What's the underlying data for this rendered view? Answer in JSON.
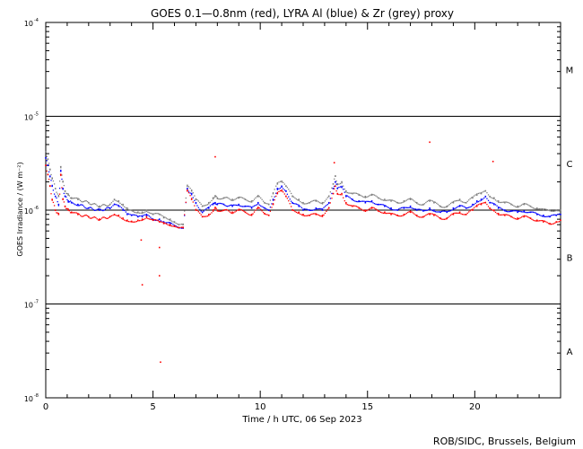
{
  "chart_data": {
    "type": "scatter",
    "title": "GOES 0.1—0.8nm (red), LYRA Al (blue) & Zr (grey) proxy",
    "xlabel": "Time / h UTC, 06 Sep 2023",
    "ylabel": "GOES Irradiance / (W m⁻²)",
    "credit": "ROB/SIDC, Brussels, Belgium",
    "xlim": [
      0,
      24
    ],
    "ylim": [
      1e-08,
      0.0001
    ],
    "yscale": "log",
    "x_ticks": [
      0,
      5,
      10,
      15,
      20
    ],
    "x_tick_labels": [
      "0",
      "5",
      "10",
      "15",
      "20"
    ],
    "y_ticks": [
      {
        "mantissa": "10",
        "exponent": "-8"
      },
      {
        "mantissa": "10",
        "exponent": "-7"
      },
      {
        "mantissa": "10",
        "exponent": "-6"
      },
      {
        "mantissa": "10",
        "exponent": "-5"
      },
      {
        "mantissa": "10",
        "exponent": "-4"
      }
    ],
    "class_levels": [
      1e-07,
      1e-06,
      1e-05
    ],
    "flare_classes": [
      {
        "label": "A",
        "y": 3.16e-08
      },
      {
        "label": "B",
        "y": 3.16e-07
      },
      {
        "label": "C",
        "y": 3.16e-06
      },
      {
        "label": "M",
        "y": 3.16e-05
      }
    ],
    "series": [
      {
        "name": "Zr (grey) proxy",
        "color": "#808080",
        "x": [
          0,
          0.1,
          0.2,
          0.3,
          0.45,
          0.6,
          0.7,
          0.8,
          0.9,
          1.05,
          1.2,
          1.5,
          2,
          2.5,
          3,
          3.2,
          3.4,
          3.6,
          3.8,
          4,
          4.3,
          4.5,
          4.7,
          5,
          5.3,
          5.5,
          5.8,
          6,
          6.2,
          6.4,
          6.6,
          6.8,
          7,
          7.3,
          7.6,
          7.8,
          7.9,
          8,
          8.3,
          8.7,
          9,
          9.3,
          9.6,
          9.9,
          10.2,
          10.4,
          10.6,
          10.8,
          11,
          11.2,
          11.5,
          11.8,
          12,
          12.3,
          12.6,
          12.9,
          13.2,
          13.4,
          13.5,
          13.6,
          13.8,
          14,
          14.3,
          14.6,
          14.9,
          15.2,
          15.5,
          15.8,
          16.1,
          16.4,
          16.7,
          17,
          17.3,
          17.6,
          17.9,
          18.1,
          18.4,
          18.7,
          19,
          19.3,
          19.6,
          19.9,
          20.1,
          20.3,
          20.5,
          20.7,
          20.9,
          21.1,
          21.4,
          21.7,
          22,
          22.3,
          22.6,
          22.9,
          23.2,
          23.5,
          23.8,
          24
        ],
        "y": [
          4.2e-06,
          3.5e-06,
          2.7e-06,
          2.2e-06,
          1.7e-06,
          1.4e-06,
          2.9e-06,
          2e-06,
          1.6e-06,
          1.45e-06,
          1.35e-06,
          1.3e-06,
          1.2e-06,
          1.1e-06,
          1.15e-06,
          1.3e-06,
          1.25e-06,
          1.15e-06,
          1.05e-06,
          1e-06,
          9.5e-07,
          9.5e-07,
          1e-06,
          9e-07,
          9e-07,
          8.3e-07,
          8e-07,
          7.5e-07,
          7e-07,
          7e-07,
          1.8e-06,
          1.6e-06,
          1.3e-06,
          1.1e-06,
          1.2e-06,
          1.35e-06,
          1.4e-06,
          1.35e-06,
          1.35e-06,
          1.3e-06,
          1.35e-06,
          1.3e-06,
          1.25e-06,
          1.4e-06,
          1.2e-06,
          1.15e-06,
          1.5e-06,
          1.9e-06,
          2e-06,
          1.8e-06,
          1.4e-06,
          1.3e-06,
          1.2e-06,
          1.2e-06,
          1.25e-06,
          1.2e-06,
          1.4e-06,
          1.9e-06,
          2.3e-06,
          1.9e-06,
          2e-06,
          1.6e-06,
          1.5e-06,
          1.45e-06,
          1.4e-06,
          1.45e-06,
          1.35e-06,
          1.3e-06,
          1.25e-06,
          1.2e-06,
          1.25e-06,
          1.3e-06,
          1.2e-06,
          1.15e-06,
          1.25e-06,
          1.2e-06,
          1.1e-06,
          1.1e-06,
          1.2e-06,
          1.3e-06,
          1.2e-06,
          1.35e-06,
          1.45e-06,
          1.5e-06,
          1.6e-06,
          1.4e-06,
          1.35e-06,
          1.25e-06,
          1.2e-06,
          1.15e-06,
          1.1e-06,
          1.15e-06,
          1.1e-06,
          1.05e-06,
          1e-06,
          1e-06,
          1e-06,
          1e-06
        ]
      },
      {
        "name": "LYRA Al (blue)",
        "color": "#0000ff",
        "x": [
          0,
          0.1,
          0.2,
          0.3,
          0.45,
          0.6,
          0.7,
          0.8,
          0.9,
          1.05,
          1.2,
          1.5,
          2,
          2.5,
          3,
          3.2,
          3.4,
          3.6,
          3.8,
          4,
          4.3,
          4.5,
          4.7,
          5,
          5.3,
          5.5,
          5.8,
          6,
          6.2,
          6.4,
          6.6,
          6.8,
          7,
          7.3,
          7.6,
          7.8,
          7.9,
          8,
          8.3,
          8.7,
          9,
          9.3,
          9.6,
          9.9,
          10.2,
          10.4,
          10.6,
          10.8,
          11,
          11.2,
          11.5,
          11.8,
          12,
          12.3,
          12.6,
          12.9,
          13.2,
          13.4,
          13.5,
          13.6,
          13.8,
          14,
          14.3,
          14.6,
          14.9,
          15.2,
          15.5,
          15.8,
          16.1,
          16.4,
          16.7,
          17,
          17.3,
          17.6,
          17.9,
          18.1,
          18.4,
          18.7,
          19,
          19.3,
          19.6,
          19.9,
          20.1,
          20.3,
          20.5,
          20.7,
          20.9,
          21.1,
          21.4,
          21.7,
          22,
          22.3,
          22.6,
          22.9,
          23.2,
          23.5,
          23.8,
          24
        ],
        "y": [
          3.6e-06,
          3e-06,
          2.3e-06,
          1.8e-06,
          1.4e-06,
          1.15e-06,
          2.6e-06,
          1.7e-06,
          1.4e-06,
          1.25e-06,
          1.2e-06,
          1.15e-06,
          1.05e-06,
          1e-06,
          1.05e-06,
          1.15e-06,
          1.1e-06,
          1e-06,
          9e-07,
          8.8e-07,
          8.5e-07,
          8.5e-07,
          8.8e-07,
          8e-07,
          8e-07,
          7.5e-07,
          7.2e-07,
          6.8e-07,
          6.5e-07,
          6.5e-07,
          1.7e-06,
          1.5e-06,
          1.2e-06,
          9.5e-07,
          1.05e-06,
          1.15e-06,
          1.2e-06,
          1.15e-06,
          1.15e-06,
          1.1e-06,
          1.15e-06,
          1.1e-06,
          1.05e-06,
          1.2e-06,
          1.05e-06,
          1e-06,
          1.3e-06,
          1.7e-06,
          1.8e-06,
          1.6e-06,
          1.2e-06,
          1.1e-06,
          1e-06,
          1e-06,
          1.05e-06,
          1e-06,
          1.2e-06,
          1.7e-06,
          2e-06,
          1.7e-06,
          1.75e-06,
          1.4e-06,
          1.3e-06,
          1.25e-06,
          1.2e-06,
          1.25e-06,
          1.15e-06,
          1.1e-06,
          1.05e-06,
          1e-06,
          1.05e-06,
          1.1e-06,
          1e-06,
          9.8e-07,
          1.05e-06,
          1e-06,
          9.5e-07,
          9.5e-07,
          1.05e-06,
          1.1e-06,
          1.05e-06,
          1.15e-06,
          1.25e-06,
          1.3e-06,
          1.4e-06,
          1.2e-06,
          1.15e-06,
          1.05e-06,
          1e-06,
          9.8e-07,
          9.5e-07,
          9.8e-07,
          9.5e-07,
          9e-07,
          8.8e-07,
          8.5e-07,
          8.8e-07,
          9e-07
        ]
      },
      {
        "name": "GOES 0.1—0.8nm (red)",
        "color": "#ff0000",
        "x": [
          0,
          0.1,
          0.2,
          0.3,
          0.45,
          0.6,
          0.7,
          0.8,
          0.9,
          1.05,
          1.2,
          1.5,
          2,
          2.5,
          3,
          3.2,
          3.4,
          3.6,
          3.8,
          4,
          4.3,
          4.5,
          4.7,
          5,
          5.3,
          5.5,
          5.8,
          6,
          6.2,
          6.4,
          6.6,
          6.8,
          7,
          7.3,
          7.6,
          7.8,
          7.9,
          8,
          8.3,
          8.7,
          9,
          9.3,
          9.6,
          9.9,
          10.2,
          10.4,
          10.6,
          10.8,
          11,
          11.2,
          11.5,
          11.8,
          12,
          12.3,
          12.6,
          12.9,
          13.2,
          13.4,
          13.5,
          13.6,
          13.8,
          14,
          14.3,
          14.6,
          14.9,
          15.2,
          15.5,
          15.8,
          16.1,
          16.4,
          16.7,
          17,
          17.3,
          17.6,
          17.9,
          18.1,
          18.4,
          18.7,
          19,
          19.3,
          19.6,
          19.9,
          20.1,
          20.3,
          20.5,
          20.7,
          20.9,
          21.1,
          21.4,
          21.7,
          22,
          22.3,
          22.6,
          22.9,
          23.2,
          23.5,
          23.8,
          24
        ],
        "y": [
          3e-06,
          2.4e-06,
          1.8e-06,
          1.3e-06,
          1e-06,
          9e-07,
          2.4e-06,
          1.3e-06,
          1.1e-06,
          1e-06,
          9.5e-07,
          9e-07,
          8.5e-07,
          8e-07,
          8.5e-07,
          9e-07,
          8.8e-07,
          8.2e-07,
          7.8e-07,
          7.6e-07,
          7.8e-07,
          8e-07,
          8.5e-07,
          7.8e-07,
          7.5e-07,
          7.2e-07,
          7e-07,
          6.8e-07,
          6.5e-07,
          6.5e-07,
          1.6e-06,
          1.3e-06,
          1e-06,
          8.5e-07,
          9e-07,
          1e-06,
          1.05e-06,
          1e-06,
          1e-06,
          9.5e-07,
          1e-06,
          9.5e-07,
          9e-07,
          1.05e-06,
          9.2e-07,
          8.8e-07,
          1.15e-06,
          1.5e-06,
          1.6e-06,
          1.4e-06,
          1e-06,
          9.5e-07,
          9e-07,
          8.8e-07,
          9e-07,
          8.8e-07,
          1.05e-06,
          1.5e-06,
          1.8e-06,
          1.5e-06,
          1.5e-06,
          1.2e-06,
          1.1e-06,
          1.05e-06,
          1e-06,
          1.05e-06,
          9.8e-07,
          9.5e-07,
          9e-07,
          8.8e-07,
          9e-07,
          9.5e-07,
          8.8e-07,
          8.5e-07,
          9e-07,
          8.8e-07,
          8.2e-07,
          8.2e-07,
          9e-07,
          9.5e-07,
          9e-07,
          1e-06,
          1.1e-06,
          1.15e-06,
          1.2e-06,
          1.05e-06,
          1e-06,
          9.2e-07,
          8.8e-07,
          8.5e-07,
          8.2e-07,
          8.5e-07,
          8.2e-07,
          7.8e-07,
          7.5e-07,
          7.2e-07,
          7.5e-07,
          7.8e-07
        ]
      }
    ],
    "outliers": [
      {
        "series": "GOES 0.1—0.8nm (red)",
        "x": 4.5,
        "y": 1.6e-07
      },
      {
        "series": "GOES 0.1—0.8nm (red)",
        "x": 4.45,
        "y": 4.8e-07
      },
      {
        "series": "GOES 0.1—0.8nm (red)",
        "x": 5.3,
        "y": 2e-07
      },
      {
        "series": "GOES 0.1—0.8nm (red)",
        "x": 5.3,
        "y": 4e-07
      },
      {
        "series": "GOES 0.1—0.8nm (red)",
        "x": 5.35,
        "y": 2.4e-08
      },
      {
        "series": "GOES 0.1—0.8nm (red)",
        "x": 7.9,
        "y": 3.7e-06
      },
      {
        "series": "GOES 0.1—0.8nm (red)",
        "x": 17.9,
        "y": 5.3e-06
      },
      {
        "series": "GOES 0.1—0.8nm (red)",
        "x": 20.85,
        "y": 3.3e-06
      },
      {
        "series": "GOES 0.1—0.8nm (red)",
        "x": 13.45,
        "y": 3.2e-06
      }
    ]
  }
}
